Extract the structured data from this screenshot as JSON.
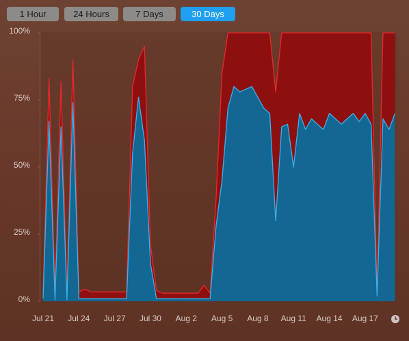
{
  "tabs": [
    "1 Hour",
    "24 Hours",
    "7 Days",
    "30 Days"
  ],
  "chart_data": {
    "type": "stacked-area",
    "categories": [
      "Jul 21",
      null,
      null,
      null,
      null,
      null,
      "Jul 24",
      null,
      null,
      null,
      null,
      null,
      "Jul 27",
      null,
      null,
      null,
      null,
      null,
      "Jul 30",
      null,
      null,
      null,
      null,
      null,
      "Aug 2",
      null,
      null,
      null,
      null,
      null,
      "Aug 5",
      null,
      null,
      null,
      null,
      null,
      "Aug 8",
      null,
      null,
      null,
      null,
      null,
      "Aug 11",
      null,
      null,
      null,
      null,
      null,
      "Aug 14",
      null,
      null,
      null,
      null,
      null,
      "Aug 17",
      null,
      null,
      null,
      null,
      null
    ],
    "series": [
      {
        "fill": "#126892",
        "color": "#3fb0ea",
        "values": [
          1,
          67,
          0.5,
          65,
          0.5,
          74,
          1,
          1,
          1,
          1,
          1,
          1,
          1,
          1,
          1,
          55,
          76,
          60,
          14,
          1,
          1,
          1,
          1,
          1,
          1,
          1,
          1,
          1,
          1,
          28,
          45,
          72,
          80,
          78,
          79,
          80,
          76,
          72,
          70,
          30,
          65,
          66,
          50,
          70,
          64,
          68,
          66,
          64,
          70,
          68,
          66,
          68,
          70,
          67,
          70,
          66,
          2,
          68,
          64,
          70
        ]
      },
      {
        "fill": "#8e0f10",
        "color": "#e8292b",
        "values": [
          2,
          16,
          2.5,
          17,
          2.5,
          16,
          2.5,
          3.5,
          2.5,
          2.5,
          2.5,
          2.5,
          2.5,
          2.5,
          2.5,
          25,
          14,
          35,
          7,
          3,
          2,
          2,
          2,
          2,
          2,
          2,
          2,
          5,
          2,
          10,
          40,
          28,
          20,
          22,
          21,
          20,
          24,
          28,
          30,
          48,
          35,
          34,
          50,
          30,
          36,
          32,
          34,
          36,
          30,
          32,
          34,
          32,
          30,
          33,
          30,
          34,
          1,
          32,
          36,
          30
        ]
      }
    ],
    "ylim": [
      0,
      100
    ],
    "yticks": [
      {
        "value": 0,
        "label": "0%"
      },
      {
        "value": 25,
        "label": "25%"
      },
      {
        "value": 50,
        "label": "50%"
      },
      {
        "value": 75,
        "label": "75%"
      },
      {
        "value": 100,
        "label": "100%"
      }
    ]
  }
}
